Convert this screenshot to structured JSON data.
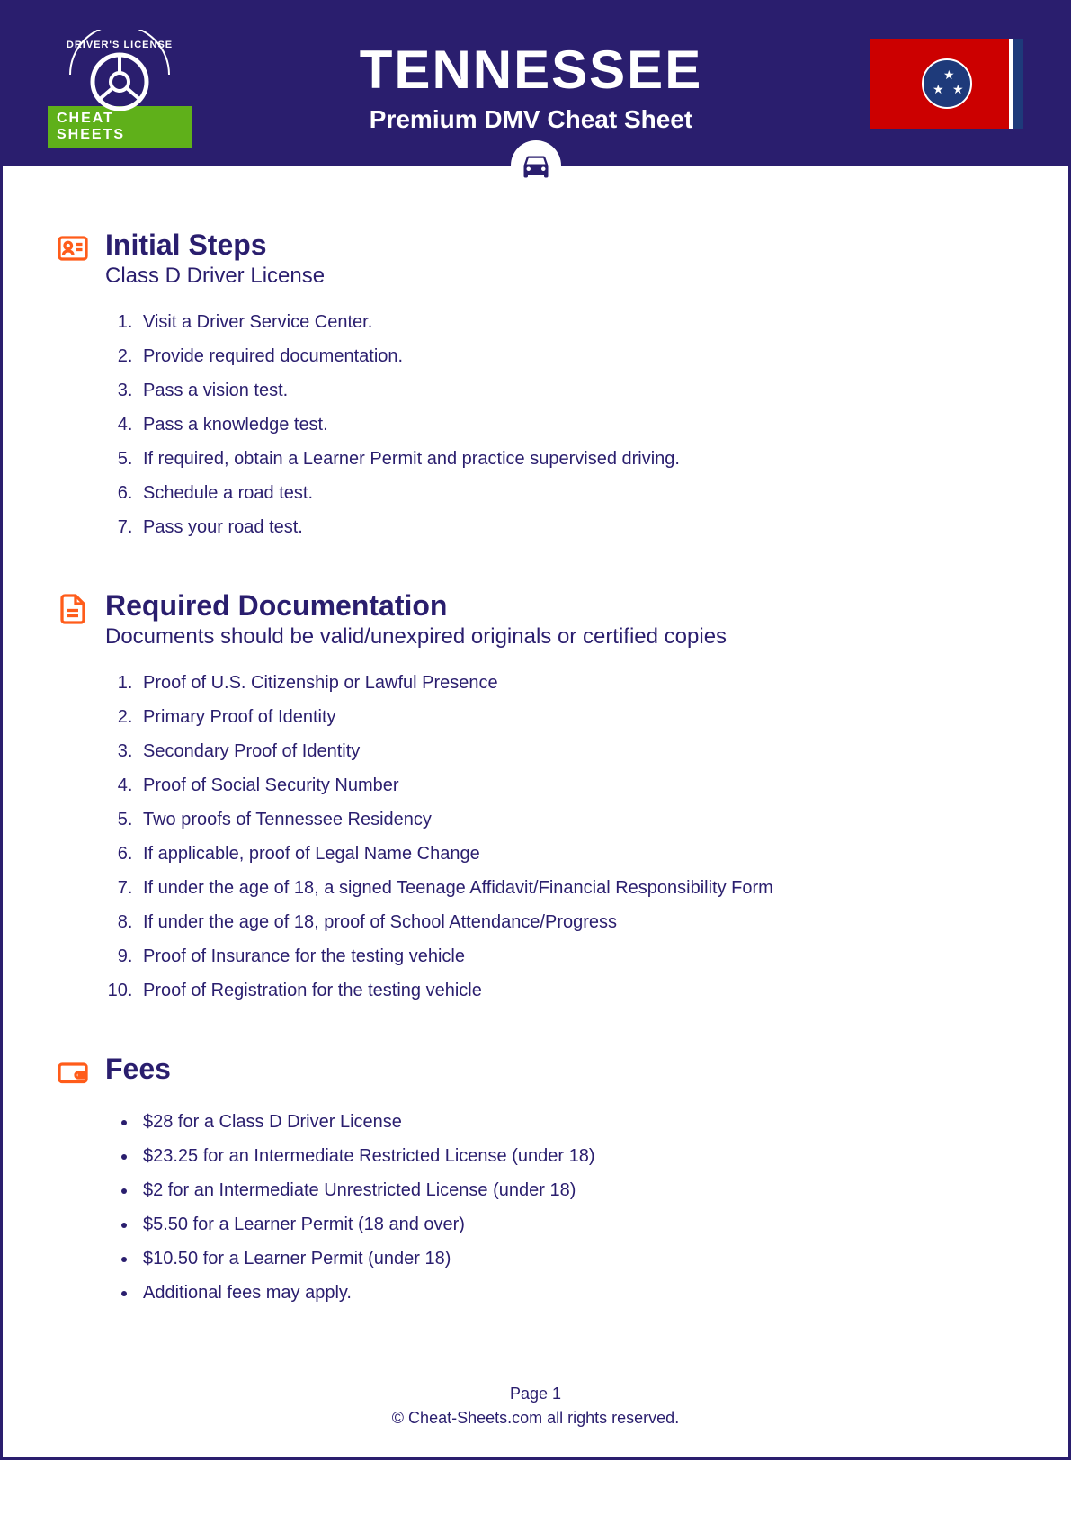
{
  "header": {
    "logo_top_text": "DRIVER'S LICENSE",
    "logo_banner": "CHEAT SHEETS",
    "state": "TENNESSEE",
    "subtitle": "Premium DMV Cheat Sheet"
  },
  "colors": {
    "primary": "#2a1e6e",
    "accent": "#ff5c1a",
    "banner_green": "#5fb01a",
    "flag_red": "#cc0000",
    "flag_blue": "#1e3a7a",
    "text": "#2a1e6e",
    "background": "#ffffff"
  },
  "typography": {
    "state_title_fontsize": 60,
    "subtitle_fontsize": 28,
    "section_title_fontsize": 32,
    "section_subtitle_fontsize": 24,
    "list_fontsize": 20,
    "footer_fontsize": 18
  },
  "sections": [
    {
      "icon": "id-card-icon",
      "title": "Initial Steps",
      "subtitle": "Class D Driver License",
      "list_type": "ordered",
      "items": [
        "Visit a Driver Service Center.",
        "Provide required documentation.",
        "Pass a vision test.",
        "Pass a knowledge test.",
        "If required, obtain a Learner Permit and practice supervised driving.",
        "Schedule a road test.",
        "Pass your road test."
      ]
    },
    {
      "icon": "document-icon",
      "title": "Required Documentation",
      "subtitle": "Documents should be valid/unexpired originals or certified copies",
      "list_type": "ordered",
      "items": [
        "Proof of U.S. Citizenship or Lawful Presence",
        "Primary Proof of Identity",
        "Secondary Proof of Identity",
        "Proof of Social Security Number",
        "Two proofs of Tennessee Residency",
        "If applicable, proof of Legal Name Change",
        "If under the age of 18, a signed Teenage Affidavit/Financial Responsibility Form",
        "If under the age of 18, proof of School Attendance/Progress",
        "Proof of Insurance for the testing vehicle",
        "Proof of Registration for the testing vehicle"
      ]
    },
    {
      "icon": "wallet-icon",
      "title": "Fees",
      "subtitle": "",
      "list_type": "bulleted",
      "items": [
        "$28 for a Class D Driver License",
        "$23.25 for an Intermediate Restricted License (under 18)",
        "$2 for an Intermediate Unrestricted License (under 18)",
        "$5.50 for a Learner Permit (18 and over)",
        "$10.50 for a Learner Permit (under 18)",
        "Additional fees may apply."
      ]
    }
  ],
  "footer": {
    "page": "Page 1",
    "copyright": "©  Cheat-Sheets.com all rights reserved."
  }
}
